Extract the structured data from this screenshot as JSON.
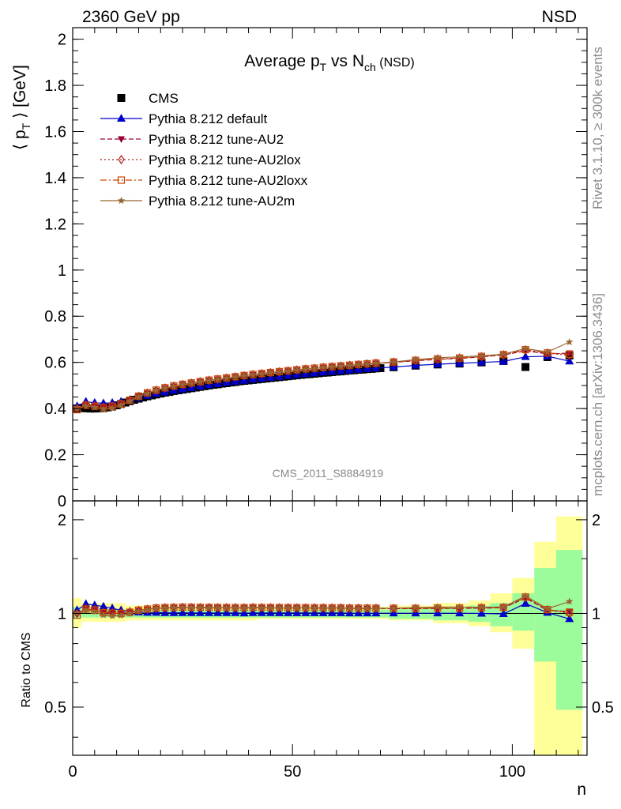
{
  "header": {
    "energy_label": "2360 GeV pp",
    "event_type_label": "NSD"
  },
  "side_labels": {
    "rivet": "Rivet 3.1.10, ≥ 300k events",
    "mcplots": "mcplots.cern.ch [arXiv:1306.3436]"
  },
  "colors": {
    "cms": "#000000",
    "default": "#0000cc",
    "au2": "#990033",
    "au2lox": "#aa2222",
    "au2loxx": "#cc4400",
    "au2m": "#996633",
    "band_stat": "#9cfc9c",
    "band_total": "#ffff99"
  },
  "chart_data": [
    {
      "type": "scatter",
      "panel": "main",
      "title_parts": {
        "main": "Average p",
        "sub1": "T",
        "mid": " vs N",
        "sub2": "ch",
        "tail": " (NSD)"
      },
      "ylabel_parts": {
        "open": "⟨ p",
        "sub": "T",
        "close": " ⟩ [GeV]"
      },
      "watermark": "CMS_2011_S8884919",
      "ylim": [
        0,
        2.05
      ],
      "xlim": [
        0,
        117
      ],
      "yticks": [
        "0",
        "0.2",
        "0.4",
        "0.6",
        "0.8",
        "1",
        "1.2",
        "1.4",
        "1.6",
        "1.8",
        "2"
      ],
      "x_cms": [
        1,
        2,
        3,
        4,
        5,
        6,
        7,
        8,
        9,
        10,
        11,
        12,
        13,
        14,
        15,
        16,
        17,
        18,
        19,
        20,
        21,
        22,
        23,
        24,
        25,
        26,
        27,
        28,
        29,
        30,
        31,
        32,
        33,
        34,
        35,
        36,
        37,
        38,
        39,
        40,
        41,
        42,
        43,
        44,
        45,
        46,
        47,
        48,
        49,
        50,
        51,
        52,
        53,
        54,
        55,
        56,
        57,
        58,
        59,
        60,
        61,
        62,
        63,
        64,
        65,
        66,
        67,
        68,
        69,
        70,
        73,
        78,
        83,
        88,
        93,
        98,
        103,
        108,
        113
      ],
      "series": [
        {
          "name": "CMS",
          "key": "cms",
          "marker": "square",
          "y": [
            0.4,
            0.403,
            0.401,
            0.4,
            0.4,
            0.401,
            0.402,
            0.405,
            0.409,
            0.414,
            0.42,
            0.426,
            0.432,
            0.438,
            0.443,
            0.448,
            0.453,
            0.457,
            0.461,
            0.465,
            0.469,
            0.472,
            0.476,
            0.479,
            0.482,
            0.485,
            0.488,
            0.491,
            0.494,
            0.497,
            0.5,
            0.503,
            0.505,
            0.508,
            0.51,
            0.513,
            0.515,
            0.518,
            0.52,
            0.522,
            0.524,
            0.526,
            0.528,
            0.53,
            0.532,
            0.534,
            0.536,
            0.538,
            0.54,
            0.542,
            0.544,
            0.546,
            0.548,
            0.549,
            0.551,
            0.553,
            0.555,
            0.556,
            0.558,
            0.56,
            0.561,
            0.563,
            0.565,
            0.566,
            0.568,
            0.569,
            0.571,
            0.572,
            0.574,
            0.575,
            0.579,
            0.586,
            0.591,
            0.595,
            0.6,
            0.606,
            0.58,
            0.623,
            0.63
          ]
        },
        {
          "name": "Pythia 8.212 default",
          "key": "default",
          "marker": "triangle",
          "dash": "",
          "x": [
            1,
            3,
            5,
            7,
            9,
            11,
            13,
            15,
            17,
            19,
            21,
            23,
            25,
            27,
            29,
            31,
            33,
            35,
            37,
            39,
            41,
            43,
            45,
            47,
            49,
            51,
            53,
            55,
            57,
            59,
            61,
            63,
            65,
            67,
            69,
            73,
            78,
            83,
            88,
            93,
            98,
            103,
            108,
            113
          ],
          "y": [
            0.41,
            0.43,
            0.425,
            0.423,
            0.425,
            0.43,
            0.438,
            0.447,
            0.456,
            0.464,
            0.471,
            0.478,
            0.484,
            0.49,
            0.496,
            0.502,
            0.507,
            0.512,
            0.517,
            0.521,
            0.526,
            0.53,
            0.534,
            0.538,
            0.542,
            0.546,
            0.55,
            0.553,
            0.557,
            0.56,
            0.563,
            0.566,
            0.569,
            0.572,
            0.575,
            0.58,
            0.587,
            0.592,
            0.596,
            0.6,
            0.604,
            0.624,
            0.627,
            0.605
          ]
        },
        {
          "name": "Pythia 8.212 tune-AU2",
          "key": "au2",
          "marker": "down-triangle",
          "dash": "6 3",
          "x": [
            1,
            3,
            5,
            7,
            9,
            11,
            13,
            15,
            17,
            19,
            21,
            23,
            25,
            27,
            29,
            31,
            33,
            35,
            37,
            39,
            41,
            43,
            45,
            47,
            49,
            51,
            53,
            55,
            57,
            59,
            61,
            63,
            65,
            67,
            69,
            73,
            78,
            83,
            88,
            93,
            98,
            103,
            108,
            113
          ],
          "y": [
            0.4,
            0.415,
            0.41,
            0.405,
            0.41,
            0.42,
            0.435,
            0.452,
            0.466,
            0.478,
            0.488,
            0.496,
            0.503,
            0.509,
            0.515,
            0.521,
            0.526,
            0.531,
            0.536,
            0.541,
            0.546,
            0.55,
            0.554,
            0.558,
            0.562,
            0.566,
            0.57,
            0.573,
            0.577,
            0.58,
            0.583,
            0.586,
            0.589,
            0.592,
            0.595,
            0.6,
            0.607,
            0.613,
            0.617,
            0.624,
            0.632,
            0.65,
            0.637,
            0.64
          ]
        },
        {
          "name": "Pythia 8.212 tune-AU2lox",
          "key": "au2lox",
          "marker": "diamond",
          "dash": "2 3",
          "x": [
            1,
            3,
            5,
            7,
            9,
            11,
            13,
            15,
            17,
            19,
            21,
            23,
            25,
            27,
            29,
            31,
            33,
            35,
            37,
            39,
            41,
            43,
            45,
            47,
            49,
            51,
            53,
            55,
            57,
            59,
            61,
            63,
            65,
            67,
            69,
            73,
            78,
            83,
            88,
            93,
            98,
            103,
            108,
            113
          ],
          "y": [
            0.4,
            0.416,
            0.412,
            0.406,
            0.411,
            0.421,
            0.436,
            0.453,
            0.467,
            0.479,
            0.489,
            0.497,
            0.504,
            0.51,
            0.516,
            0.522,
            0.527,
            0.532,
            0.537,
            0.542,
            0.547,
            0.551,
            0.555,
            0.559,
            0.563,
            0.567,
            0.571,
            0.574,
            0.578,
            0.581,
            0.584,
            0.587,
            0.59,
            0.593,
            0.596,
            0.601,
            0.608,
            0.614,
            0.618,
            0.625,
            0.633,
            0.653,
            0.64,
            0.63
          ]
        },
        {
          "name": "Pythia 8.212 tune-AU2loxx",
          "key": "au2loxx",
          "marker": "open-square",
          "dash": "8 3 2 3",
          "x": [
            1,
            3,
            5,
            7,
            9,
            11,
            13,
            15,
            17,
            19,
            21,
            23,
            25,
            27,
            29,
            31,
            33,
            35,
            37,
            39,
            41,
            43,
            45,
            47,
            49,
            51,
            53,
            55,
            57,
            59,
            61,
            63,
            65,
            67,
            69,
            73,
            78,
            83,
            88,
            93,
            98,
            103,
            108,
            113
          ],
          "y": [
            0.395,
            0.414,
            0.41,
            0.404,
            0.41,
            0.42,
            0.436,
            0.454,
            0.468,
            0.48,
            0.49,
            0.498,
            0.505,
            0.511,
            0.517,
            0.523,
            0.528,
            0.533,
            0.538,
            0.543,
            0.548,
            0.552,
            0.556,
            0.56,
            0.564,
            0.568,
            0.572,
            0.575,
            0.579,
            0.582,
            0.585,
            0.588,
            0.591,
            0.594,
            0.597,
            0.602,
            0.609,
            0.615,
            0.619,
            0.626,
            0.634,
            0.655,
            0.641,
            0.635
          ]
        },
        {
          "name": "Pythia 8.212 tune-AU2m",
          "key": "au2m",
          "marker": "star",
          "dash": "",
          "x": [
            1,
            3,
            5,
            7,
            9,
            11,
            13,
            15,
            17,
            19,
            21,
            23,
            25,
            27,
            29,
            31,
            33,
            35,
            37,
            39,
            41,
            43,
            45,
            47,
            49,
            51,
            53,
            55,
            57,
            59,
            61,
            63,
            65,
            67,
            69,
            73,
            78,
            83,
            88,
            93,
            98,
            103,
            108,
            113
          ],
          "y": [
            0.4,
            0.412,
            0.405,
            0.397,
            0.401,
            0.414,
            0.432,
            0.451,
            0.466,
            0.479,
            0.489,
            0.497,
            0.504,
            0.51,
            0.516,
            0.522,
            0.527,
            0.532,
            0.537,
            0.542,
            0.547,
            0.551,
            0.555,
            0.559,
            0.563,
            0.567,
            0.571,
            0.574,
            0.578,
            0.581,
            0.584,
            0.587,
            0.59,
            0.593,
            0.596,
            0.602,
            0.612,
            0.62,
            0.624,
            0.628,
            0.636,
            0.66,
            0.645,
            0.688
          ]
        }
      ]
    },
    {
      "type": "scatter",
      "panel": "ratio",
      "ylabel": "Ratio to CMS",
      "xlabel": "n",
      "xlim": [
        0,
        117
      ],
      "ylim": [
        0.35,
        2.3
      ],
      "log_y": true,
      "xticks": [
        "0",
        "50",
        "100"
      ],
      "yticks": [
        "0.5",
        "1",
        "2"
      ],
      "bands": {
        "x_edges": [
          0,
          2,
          12,
          22,
          32,
          42,
          52,
          62,
          72,
          82,
          90,
          95,
          100,
          105,
          110,
          116
        ],
        "total_lo": [
          0.9,
          0.94,
          0.95,
          0.95,
          0.95,
          0.96,
          0.96,
          0.96,
          0.95,
          0.93,
          0.91,
          0.87,
          0.77,
          0.33,
          0.33
        ],
        "total_hi": [
          1.12,
          1.08,
          1.06,
          1.05,
          1.05,
          1.05,
          1.05,
          1.05,
          1.06,
          1.08,
          1.1,
          1.16,
          1.3,
          1.7,
          2.05
        ],
        "stat_lo": [
          0.96,
          0.97,
          0.97,
          0.97,
          0.97,
          0.97,
          0.97,
          0.97,
          0.96,
          0.95,
          0.94,
          0.91,
          0.88,
          0.7,
          0.49
        ],
        "stat_hi": [
          1.05,
          1.03,
          1.03,
          1.03,
          1.03,
          1.03,
          1.03,
          1.03,
          1.04,
          1.05,
          1.06,
          1.08,
          1.16,
          1.4,
          1.6
        ]
      }
    }
  ]
}
